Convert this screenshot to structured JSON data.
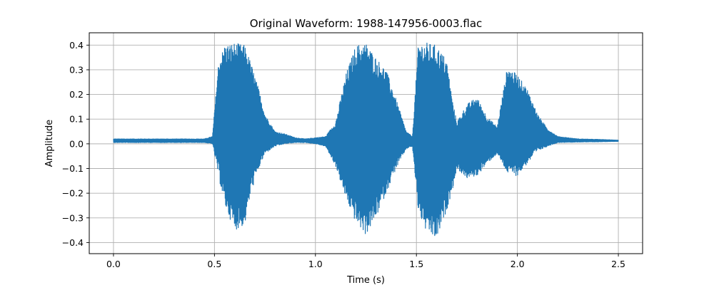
{
  "chart_data": {
    "type": "line",
    "title": "Original Waveform: 1988-147956-0003.flac",
    "xlabel": "Time (s)",
    "ylabel": "Amplitude",
    "xlim": [
      -0.12,
      2.62
    ],
    "ylim": [
      -0.445,
      0.45
    ],
    "xticks": [
      0.0,
      0.5,
      1.0,
      1.5,
      2.0,
      2.5
    ],
    "xtick_labels": [
      "0.0",
      "0.5",
      "1.0",
      "1.5",
      "2.0",
      "2.5"
    ],
    "yticks": [
      -0.4,
      -0.3,
      -0.2,
      -0.1,
      0.0,
      0.1,
      0.2,
      0.3,
      0.4
    ],
    "ytick_labels": [
      "−0.4",
      "−0.3",
      "−0.2",
      "−0.1",
      "0.0",
      "0.1",
      "0.2",
      "0.3",
      "0.4"
    ],
    "grid": true,
    "line_color": "#1f77b4",
    "series": [
      {
        "x": [
          0.0,
          0.45,
          0.49,
          0.52,
          0.55,
          0.6,
          0.65,
          0.68,
          0.72,
          0.75,
          0.8,
          0.85,
          0.9,
          0.95,
          1.0,
          1.05,
          1.1,
          1.15,
          1.2,
          1.25,
          1.3,
          1.35,
          1.4,
          1.45,
          1.48,
          1.51,
          1.55,
          1.6,
          1.65,
          1.68,
          1.7,
          1.75,
          1.8,
          1.85,
          1.9,
          1.95,
          2.0,
          2.05,
          2.1,
          2.15,
          2.2,
          2.3,
          2.4,
          2.5
        ],
        "upper": [
          0.02,
          0.02,
          0.03,
          0.33,
          0.4,
          0.41,
          0.4,
          0.33,
          0.22,
          0.12,
          0.05,
          0.04,
          0.025,
          0.02,
          0.025,
          0.03,
          0.09,
          0.28,
          0.4,
          0.41,
          0.35,
          0.3,
          0.18,
          0.05,
          0.03,
          0.41,
          0.41,
          0.4,
          0.34,
          0.17,
          0.09,
          0.16,
          0.19,
          0.11,
          0.07,
          0.31,
          0.28,
          0.22,
          0.12,
          0.06,
          0.03,
          0.02,
          0.018,
          0.015
        ],
        "lower": [
          0.005,
          0.005,
          0.0,
          -0.13,
          -0.25,
          -0.35,
          -0.33,
          -0.2,
          -0.1,
          -0.04,
          -0.01,
          0.0,
          0.005,
          0.005,
          0.0,
          -0.01,
          -0.09,
          -0.22,
          -0.32,
          -0.37,
          -0.3,
          -0.2,
          -0.1,
          -0.02,
          -0.01,
          -0.28,
          -0.36,
          -0.39,
          -0.27,
          -0.18,
          -0.1,
          -0.14,
          -0.13,
          -0.08,
          -0.04,
          -0.12,
          -0.13,
          -0.08,
          -0.03,
          -0.01,
          0.005,
          0.007,
          0.008,
          0.01
        ]
      }
    ]
  }
}
